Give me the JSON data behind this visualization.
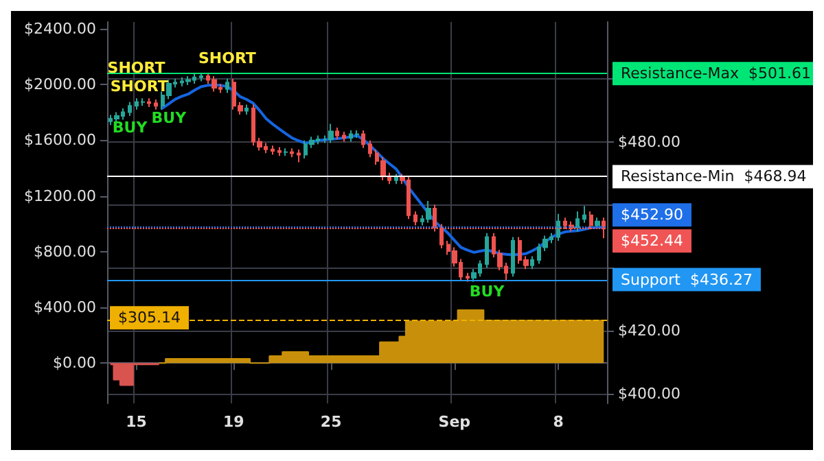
{
  "chart_data": {
    "type": "candlestick",
    "categories": [
      null,
      null,
      null,
      null,
      "15",
      null,
      null,
      null,
      null,
      null,
      null,
      null,
      null,
      null,
      null,
      null,
      null,
      null,
      null,
      "19",
      null,
      null,
      null,
      null,
      null,
      null,
      null,
      null,
      null,
      null,
      null,
      null,
      null,
      null,
      "25",
      null,
      null,
      null,
      null,
      null,
      null,
      null,
      null,
      null,
      null,
      null,
      null,
      null,
      null,
      null,
      null,
      null,
      null,
      "Sep",
      null,
      null,
      null,
      null,
      null,
      null,
      null,
      null,
      null,
      null,
      null,
      null,
      null,
      null,
      null,
      "8",
      null,
      null,
      null,
      null,
      null,
      null,
      null
    ],
    "series": [
      {
        "type": "area",
        "axis": "y",
        "color": "#d9534f",
        "values": [
          -10,
          -120,
          -160,
          -160,
          -10,
          -10,
          -10,
          -10,
          null,
          null,
          null,
          null,
          null,
          null,
          null,
          null,
          null,
          null,
          null,
          null,
          null,
          null,
          null,
          null,
          null,
          null,
          null,
          null,
          null,
          null,
          null,
          null,
          null,
          null,
          null,
          null,
          null,
          null,
          null,
          null,
          null,
          null,
          null,
          null,
          null,
          null,
          null,
          null,
          null,
          null,
          null,
          null,
          null,
          null,
          null,
          null,
          null,
          null,
          null,
          null,
          null,
          null,
          null,
          null,
          null,
          null,
          null,
          null,
          null,
          null,
          null,
          null,
          null,
          null,
          null,
          null,
          null
        ]
      },
      {
        "type": "area",
        "axis": "y",
        "color": "#c8900a",
        "values": [
          null,
          null,
          null,
          null,
          null,
          null,
          null,
          null,
          0,
          30,
          30,
          30,
          30,
          30,
          30,
          30,
          30,
          30,
          30,
          30,
          30,
          30,
          0,
          0,
          0,
          50,
          50,
          80,
          80,
          80,
          80,
          50,
          50,
          50,
          50,
          50,
          50,
          50,
          50,
          50,
          50,
          50,
          150,
          150,
          150,
          190,
          300,
          300,
          300,
          300,
          300,
          300,
          300,
          300,
          380,
          380,
          380,
          380,
          305.14,
          305.14,
          305.14,
          305.14,
          305.14,
          305.14,
          305.14,
          305.14,
          305.14,
          305.14,
          305.14,
          305.14,
          305.14,
          305.14,
          305.14,
          305.14,
          305.14,
          305.14,
          305.14
        ]
      },
      {
        "type": "line",
        "axis": "y2",
        "color": "#1565e0",
        "values": [
          null,
          null,
          null,
          null,
          null,
          null,
          null,
          null,
          490.6,
          492,
          493.5,
          494.4,
          495.1,
          496.4,
          497.5,
          497.9,
          498,
          497.9,
          497.5,
          496.2,
          494.3,
          493.4,
          492.2,
          489.9,
          487.3,
          485.6,
          484.1,
          482.6,
          481.2,
          480.3,
          479.6,
          479.9,
          480.4,
          480.6,
          480.8,
          481,
          481.2,
          481.6,
          482,
          480.6,
          478.8,
          476.8,
          474.7,
          473,
          471.4,
          468.5,
          465.3,
          462.6,
          460,
          457.3,
          454.7,
          452.8,
          451,
          448.7,
          446.5,
          445.6,
          444.9,
          445.3,
          445.7,
          445.1,
          444.5,
          444.3,
          444.1,
          444.3,
          444.5,
          445.4,
          446.5,
          448.2,
          449.8,
          450.7,
          451.4,
          451.6,
          451.8,
          452.2,
          452.7,
          452.8,
          452.9
        ]
      },
      {
        "axis": "y2",
        "ohlc": [
          [
            486.5,
            488.5,
            485.3,
            487.3
          ],
          [
            487.3,
            489.4,
            486.1,
            488.2
          ],
          [
            488.2,
            490.6,
            487,
            489.4
          ],
          [
            489.4,
            492.6,
            488.2,
            491.4
          ],
          [
            491.4,
            493.8,
            490.2,
            492.6
          ],
          [
            492.6,
            493.8,
            491.4,
            492.6
          ],
          [
            492.6,
            493.8,
            491,
            492.2
          ],
          [
            492.2,
            493.4,
            490.2,
            491.4
          ],
          [
            491.4,
            495.9,
            490.2,
            494.7
          ],
          [
            494.7,
            499.6,
            493.5,
            498.4
          ],
          [
            498.4,
            500,
            497.2,
            498.8
          ],
          [
            498.8,
            500.4,
            497.6,
            499.2
          ],
          [
            499.2,
            500.8,
            498,
            499.6
          ],
          [
            499.6,
            501.6,
            498.4,
            500.4
          ],
          [
            500.4,
            501.6,
            499.2,
            500.8
          ],
          [
            500.8,
            501.6,
            498.4,
            499.6
          ],
          [
            499.6,
            500.8,
            495.9,
            497.1
          ],
          [
            497.1,
            498.3,
            495.5,
            496.7
          ],
          [
            496.7,
            500,
            495.5,
            498.8
          ],
          [
            498.8,
            500,
            490.2,
            491.4
          ],
          [
            491.4,
            492.6,
            488.6,
            489.8
          ],
          [
            489.8,
            491.8,
            488.6,
            490.6
          ],
          [
            490.6,
            491.8,
            478.8,
            480
          ],
          [
            480,
            481.2,
            477.2,
            478.4
          ],
          [
            478.4,
            479.6,
            476.4,
            477.6
          ],
          [
            477.6,
            478.8,
            475.9,
            477.1
          ],
          [
            477.1,
            478.3,
            475.5,
            476.7
          ],
          [
            476.7,
            477.9,
            475.5,
            476.7
          ],
          [
            476.7,
            477.9,
            475.1,
            476.3
          ],
          [
            476.3,
            477.5,
            473.5,
            475.9
          ],
          [
            475.9,
            480.4,
            474.7,
            479.2
          ],
          [
            479.2,
            481.6,
            478,
            480.4
          ],
          [
            480.4,
            482,
            479.2,
            480.8
          ],
          [
            480.8,
            482,
            479.6,
            480.8
          ],
          [
            480.8,
            485.7,
            479.6,
            483.3
          ],
          [
            483.3,
            484.5,
            480.8,
            482
          ],
          [
            482,
            483.2,
            480,
            481.2
          ],
          [
            481.2,
            483.6,
            480,
            482.4
          ],
          [
            482.4,
            483.6,
            481.2,
            482.4
          ],
          [
            482.4,
            483.6,
            478,
            479.2
          ],
          [
            479.2,
            480.4,
            475.1,
            476.3
          ],
          [
            476.3,
            477.5,
            472.7,
            473.9
          ],
          [
            473.9,
            475.1,
            467.8,
            469
          ],
          [
            469,
            470.2,
            466.6,
            467.8
          ],
          [
            467.8,
            469.8,
            466.6,
            468.6
          ],
          [
            468.6,
            469.8,
            466.6,
            467.8
          ],
          [
            467.8,
            469,
            455.5,
            456.7
          ],
          [
            456.7,
            457.9,
            453.5,
            454.7
          ],
          [
            454.7,
            456.7,
            453.5,
            455.5
          ],
          [
            455.5,
            461.2,
            454.3,
            458.8
          ],
          [
            458.8,
            460,
            451.5,
            452.7
          ],
          [
            452.7,
            453.9,
            446.2,
            447.4
          ],
          [
            447.4,
            448.6,
            444.1,
            445.3
          ],
          [
            445.3,
            446.5,
            440.4,
            441.6
          ],
          [
            441.6,
            442.8,
            436,
            437.2
          ],
          [
            437.2,
            438.4,
            435.6,
            436.8
          ],
          [
            436.8,
            439.6,
            435.6,
            438.4
          ],
          [
            438.4,
            442.4,
            437.2,
            441.2
          ],
          [
            441.2,
            451,
            440,
            449.8
          ],
          [
            449.8,
            451,
            443.3,
            444.5
          ],
          [
            444.5,
            445.7,
            439.2,
            440.4
          ],
          [
            440.4,
            441.6,
            436,
            438.4
          ],
          [
            438.4,
            449.8,
            437.2,
            448.6
          ],
          [
            448.6,
            449.8,
            441.3,
            442.5
          ],
          [
            442.5,
            443.7,
            439.6,
            440.8
          ],
          [
            440.8,
            443.7,
            439.6,
            442.5
          ],
          [
            442.5,
            447.7,
            441.3,
            446.5
          ],
          [
            446.5,
            450.2,
            445.3,
            449
          ],
          [
            449,
            451,
            447.8,
            449.8
          ],
          [
            449.8,
            457.1,
            448.6,
            454.7
          ],
          [
            454.7,
            455.9,
            452.3,
            453.5
          ],
          [
            453.5,
            454.7,
            451.5,
            452.7
          ],
          [
            452.7,
            457.9,
            451.5,
            455.5
          ],
          [
            455.5,
            459.6,
            454.3,
            456.7
          ],
          [
            456.7,
            457.9,
            452.3,
            453.5
          ],
          [
            453.5,
            455.9,
            452.3,
            454.7
          ],
          [
            454.7,
            455.9,
            449.4,
            452.44
          ]
        ],
        "colors": [
          "#26a69a",
          "#26a69a",
          "#26a69a",
          "#26a69a",
          "#26a69a",
          "#26a69a",
          "#ef5350",
          "#ef5350",
          "#26a69a",
          "#26a69a",
          "#26a69a",
          "#26a69a",
          "#26a69a",
          "#26a69a",
          "#26a69a",
          "#ef5350",
          "#ef5350",
          "#ef5350",
          "#26a69a",
          "#ef5350",
          "#ef5350",
          "#26a69a",
          "#ef5350",
          "#ef5350",
          "#ef5350",
          "#ef5350",
          "#ef5350",
          "#26a69a",
          "#ef5350",
          "#ef5350",
          "#26a69a",
          "#26a69a",
          "#26a69a",
          "#26a69a",
          "#26a69a",
          "#ef5350",
          "#ef5350",
          "#26a69a",
          "#26a69a",
          "#ef5350",
          "#ef5350",
          "#ef5350",
          "#ef5350",
          "#ef5350",
          "#26a69a",
          "#ef5350",
          "#ef5350",
          "#ef5350",
          "#26a69a",
          "#26a69a",
          "#ef5350",
          "#ef5350",
          "#ef5350",
          "#ef5350",
          "#ef5350",
          "#ef5350",
          "#26a69a",
          "#26a69a",
          "#26a69a",
          "#ef5350",
          "#ef5350",
          "#ef5350",
          "#26a69a",
          "#ef5350",
          "#ef5350",
          "#26a69a",
          "#26a69a",
          "#26a69a",
          "#26a69a",
          "#26a69a",
          "#ef5350",
          "#ef5350",
          "#26a69a",
          "#26a69a",
          "#ef5350",
          "#26a69a",
          "#ef5350"
        ]
      }
    ],
    "ylim": [
      -290,
      2450
    ],
    "yticks": [
      {
        "value": 0,
        "label": "$0.00"
      },
      {
        "value": 400,
        "label": "$400.00"
      },
      {
        "value": 800,
        "label": "$800.00"
      },
      {
        "value": 1200,
        "label": "$1200.00"
      },
      {
        "value": 1600,
        "label": "$1600.00"
      },
      {
        "value": 2000,
        "label": "$2000.00"
      },
      {
        "value": 2400,
        "label": "$2400.00"
      }
    ],
    "y2lim": [
      397,
      518
    ],
    "y2ticks": [
      {
        "value": 400,
        "label": "$400.00"
      },
      {
        "value": 420,
        "label": "$420.00"
      },
      {
        "value": 440,
        "label": null
      },
      {
        "value": 460,
        "label": null
      },
      {
        "value": 480,
        "label": "$480.00"
      },
      {
        "value": 500,
        "label": null
      }
    ],
    "ref_lines": [
      {
        "axis": "y2",
        "value": 501.61,
        "label": "Resistance-Max  $501.61",
        "color": "#00e676",
        "line_style": "solid"
      },
      {
        "axis": "y2",
        "value": 468.94,
        "label": "Resistance-Min  $468.94",
        "color": "#ffffff",
        "line_style": "solid"
      },
      {
        "axis": "y2",
        "value": 452.9,
        "label": "$452.90",
        "color": "#1e6fe8",
        "line_style": "dotted"
      },
      {
        "axis": "y2",
        "value": 452.44,
        "label": "$452.44",
        "color": "#f05454",
        "line_style": "dotted"
      },
      {
        "axis": "y2",
        "value": 436.27,
        "label": "Support  $436.27",
        "color": "#2196f3",
        "line_style": "solid"
      },
      {
        "axis": "y",
        "value": 305.14,
        "label": "$305.14",
        "color": "#f0b000",
        "line_style": "dashed"
      }
    ],
    "annotations": [
      "SHORT",
      "SHORT",
      "SHORT",
      "BUY",
      "BUY",
      "BUY"
    ],
    "grid": true
  }
}
